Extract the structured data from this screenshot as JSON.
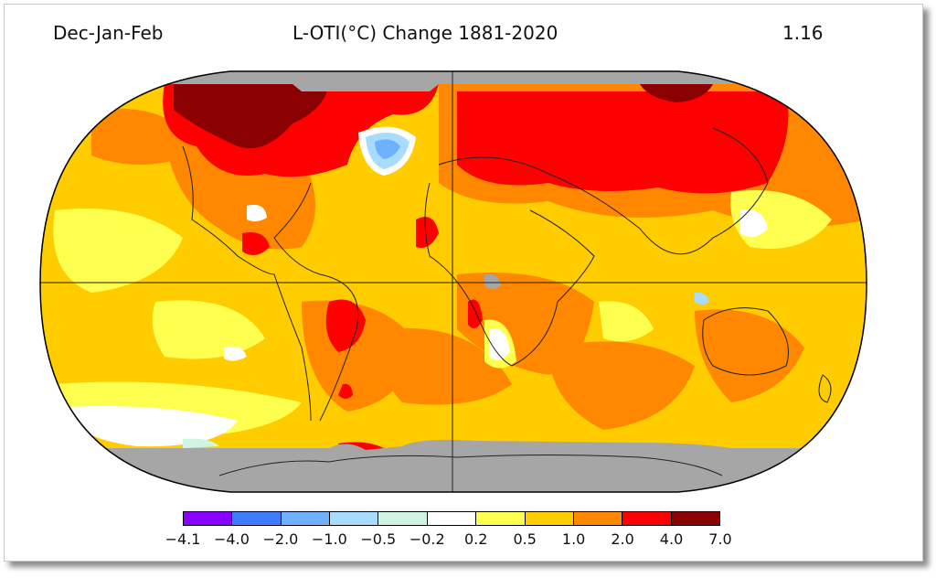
{
  "header": {
    "season": "Dec-Jan-Feb",
    "title": "L-OTI(°C) Change 1881-2020",
    "global_mean": "1.16"
  },
  "legend": {
    "colors": [
      "#8a00ff",
      "#3f7cff",
      "#6fb0ff",
      "#a7dcff",
      "#cdf5e1",
      "#ffffff",
      "#ffff50",
      "#ffcc00",
      "#ff8800",
      "#ff0000",
      "#8b0000"
    ],
    "ticks": [
      "−4.1",
      "−4.0",
      "−2.0",
      "−1.0",
      "−0.5",
      "−0.2",
      "0.2",
      "0.5",
      "1.0",
      "2.0",
      "4.0",
      "7.0"
    ]
  },
  "map": {
    "projection": "Robinson",
    "missing_data_color": "#a6a6a6",
    "base_color": "#ffcc00"
  }
}
